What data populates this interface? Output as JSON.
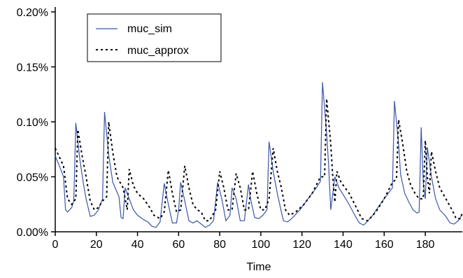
{
  "chart_data": {
    "type": "line",
    "xlabel": "Time",
    "ylabel": "",
    "title": "",
    "xlim": [
      0,
      198
    ],
    "ylim": [
      0.0,
      0.2
    ],
    "x_ticks": [
      0,
      20,
      40,
      60,
      80,
      100,
      120,
      140,
      160,
      180
    ],
    "y_ticks": [
      0.0,
      0.05,
      0.1,
      0.15,
      0.2
    ],
    "y_tick_labels": [
      "0.00%",
      "0.05%",
      "0.10%",
      "0.15%",
      "0.20%"
    ],
    "legend_position": "top-left",
    "grid": false,
    "series": [
      {
        "name": "muc_sim",
        "color": "#3a57a7",
        "style": "solid",
        "points": [
          [
            0,
            0.069
          ],
          [
            2,
            0.06
          ],
          [
            4,
            0.05
          ],
          [
            5,
            0.02
          ],
          [
            6,
            0.018
          ],
          [
            8,
            0.022
          ],
          [
            9,
            0.028
          ],
          [
            10,
            0.099
          ],
          [
            12,
            0.065
          ],
          [
            14,
            0.04
          ],
          [
            15,
            0.03
          ],
          [
            17,
            0.014
          ],
          [
            19,
            0.015
          ],
          [
            21,
            0.02
          ],
          [
            23,
            0.03
          ],
          [
            24,
            0.109
          ],
          [
            26,
            0.07
          ],
          [
            28,
            0.045
          ],
          [
            31,
            0.032
          ],
          [
            32,
            0.013
          ],
          [
            33,
            0.012
          ],
          [
            34,
            0.04
          ],
          [
            36,
            0.03
          ],
          [
            38,
            0.02
          ],
          [
            40,
            0.015
          ],
          [
            43,
            0.011
          ],
          [
            45,
            0.009
          ],
          [
            47,
            0.005
          ],
          [
            49,
            0.004
          ],
          [
            51,
            0.009
          ],
          [
            53,
            0.044
          ],
          [
            55,
            0.025
          ],
          [
            57,
            0.008
          ],
          [
            59,
            0.008
          ],
          [
            60,
            0.02
          ],
          [
            61,
            0.045
          ],
          [
            63,
            0.028
          ],
          [
            65,
            0.01
          ],
          [
            67,
            0.008
          ],
          [
            69,
            0.01
          ],
          [
            71,
            0.007
          ],
          [
            73,
            0.004
          ],
          [
            75,
            0.006
          ],
          [
            77,
            0.01
          ],
          [
            79,
            0.045
          ],
          [
            81,
            0.03
          ],
          [
            83,
            0.01
          ],
          [
            85,
            0.015
          ],
          [
            86,
            0.04
          ],
          [
            88,
            0.03
          ],
          [
            90,
            0.01
          ],
          [
            92,
            0.01
          ],
          [
            94,
            0.043
          ],
          [
            95,
            0.03
          ],
          [
            97,
            0.013
          ],
          [
            99,
            0.012
          ],
          [
            101,
            0.015
          ],
          [
            103,
            0.02
          ],
          [
            104,
            0.082
          ],
          [
            106,
            0.055
          ],
          [
            108,
            0.035
          ],
          [
            110,
            0.018
          ],
          [
            111,
            0.01
          ],
          [
            113,
            0.009
          ],
          [
            115,
            0.012
          ],
          [
            119,
            0.02
          ],
          [
            123,
            0.03
          ],
          [
            127,
            0.04
          ],
          [
            129,
            0.046
          ],
          [
            130,
            0.136
          ],
          [
            132,
            0.09
          ],
          [
            133,
            0.06
          ],
          [
            134,
            0.02
          ],
          [
            136,
            0.05
          ],
          [
            138,
            0.04
          ],
          [
            142,
            0.028
          ],
          [
            146,
            0.014
          ],
          [
            148,
            0.008
          ],
          [
            150,
            0.006
          ],
          [
            154,
            0.014
          ],
          [
            158,
            0.025
          ],
          [
            162,
            0.035
          ],
          [
            164,
            0.04
          ],
          [
            165,
            0.119
          ],
          [
            167,
            0.08
          ],
          [
            168,
            0.052
          ],
          [
            170,
            0.035
          ],
          [
            172,
            0.027
          ],
          [
            174,
            0.02
          ],
          [
            176,
            0.017
          ],
          [
            177,
            0.018
          ],
          [
            178,
            0.095
          ],
          [
            179,
            0.045
          ],
          [
            180,
            0.03
          ],
          [
            181,
            0.077
          ],
          [
            183,
            0.05
          ],
          [
            185,
            0.03
          ],
          [
            187,
            0.02
          ],
          [
            190,
            0.014
          ],
          [
            192,
            0.008
          ],
          [
            194,
            0.007
          ],
          [
            196,
            0.01
          ],
          [
            198,
            0.016
          ]
        ]
      },
      {
        "name": "muc_approx",
        "color": "#000000",
        "style": "dotted",
        "points": [
          [
            0,
            0.076
          ],
          [
            2,
            0.068
          ],
          [
            4,
            0.06
          ],
          [
            6,
            0.03
          ],
          [
            8,
            0.025
          ],
          [
            10,
            0.03
          ],
          [
            11,
            0.093
          ],
          [
            13,
            0.07
          ],
          [
            15,
            0.05
          ],
          [
            17,
            0.028
          ],
          [
            19,
            0.02
          ],
          [
            21,
            0.022
          ],
          [
            23,
            0.028
          ],
          [
            25,
            0.032
          ],
          [
            26,
            0.1
          ],
          [
            28,
            0.072
          ],
          [
            30,
            0.05
          ],
          [
            33,
            0.04
          ],
          [
            35,
            0.02
          ],
          [
            36,
            0.057
          ],
          [
            38,
            0.042
          ],
          [
            40,
            0.035
          ],
          [
            43,
            0.03
          ],
          [
            46,
            0.022
          ],
          [
            48,
            0.015
          ],
          [
            51,
            0.012
          ],
          [
            53,
            0.018
          ],
          [
            55,
            0.056
          ],
          [
            57,
            0.035
          ],
          [
            59,
            0.018
          ],
          [
            61,
            0.02
          ],
          [
            63,
            0.06
          ],
          [
            65,
            0.04
          ],
          [
            67,
            0.025
          ],
          [
            69,
            0.02
          ],
          [
            71,
            0.018
          ],
          [
            73,
            0.01
          ],
          [
            75,
            0.01
          ],
          [
            78,
            0.02
          ],
          [
            80,
            0.055
          ],
          [
            82,
            0.04
          ],
          [
            84,
            0.02
          ],
          [
            86,
            0.02
          ],
          [
            88,
            0.053
          ],
          [
            90,
            0.04
          ],
          [
            92,
            0.02
          ],
          [
            94,
            0.02
          ],
          [
            96,
            0.055
          ],
          [
            98,
            0.035
          ],
          [
            100,
            0.02
          ],
          [
            102,
            0.02
          ],
          [
            104,
            0.03
          ],
          [
            106,
            0.076
          ],
          [
            108,
            0.055
          ],
          [
            110,
            0.04
          ],
          [
            112,
            0.02
          ],
          [
            114,
            0.015
          ],
          [
            117,
            0.018
          ],
          [
            121,
            0.025
          ],
          [
            125,
            0.035
          ],
          [
            129,
            0.05
          ],
          [
            131,
            0.05
          ],
          [
            132,
            0.121
          ],
          [
            134,
            0.08
          ],
          [
            135,
            0.05
          ],
          [
            136,
            0.027
          ],
          [
            137,
            0.055
          ],
          [
            139,
            0.045
          ],
          [
            143,
            0.035
          ],
          [
            147,
            0.02
          ],
          [
            149,
            0.012
          ],
          [
            152,
            0.01
          ],
          [
            156,
            0.018
          ],
          [
            160,
            0.03
          ],
          [
            164,
            0.045
          ],
          [
            166,
            0.048
          ],
          [
            167,
            0.102
          ],
          [
            169,
            0.08
          ],
          [
            171,
            0.055
          ],
          [
            173,
            0.042
          ],
          [
            175,
            0.035
          ],
          [
            177,
            0.03
          ],
          [
            179,
            0.03
          ],
          [
            180,
            0.083
          ],
          [
            181,
            0.05
          ],
          [
            182,
            0.035
          ],
          [
            183,
            0.073
          ],
          [
            185,
            0.055
          ],
          [
            187,
            0.04
          ],
          [
            190,
            0.03
          ],
          [
            193,
            0.02
          ],
          [
            195,
            0.012
          ],
          [
            197,
            0.012
          ],
          [
            198,
            0.017
          ]
        ]
      }
    ]
  }
}
